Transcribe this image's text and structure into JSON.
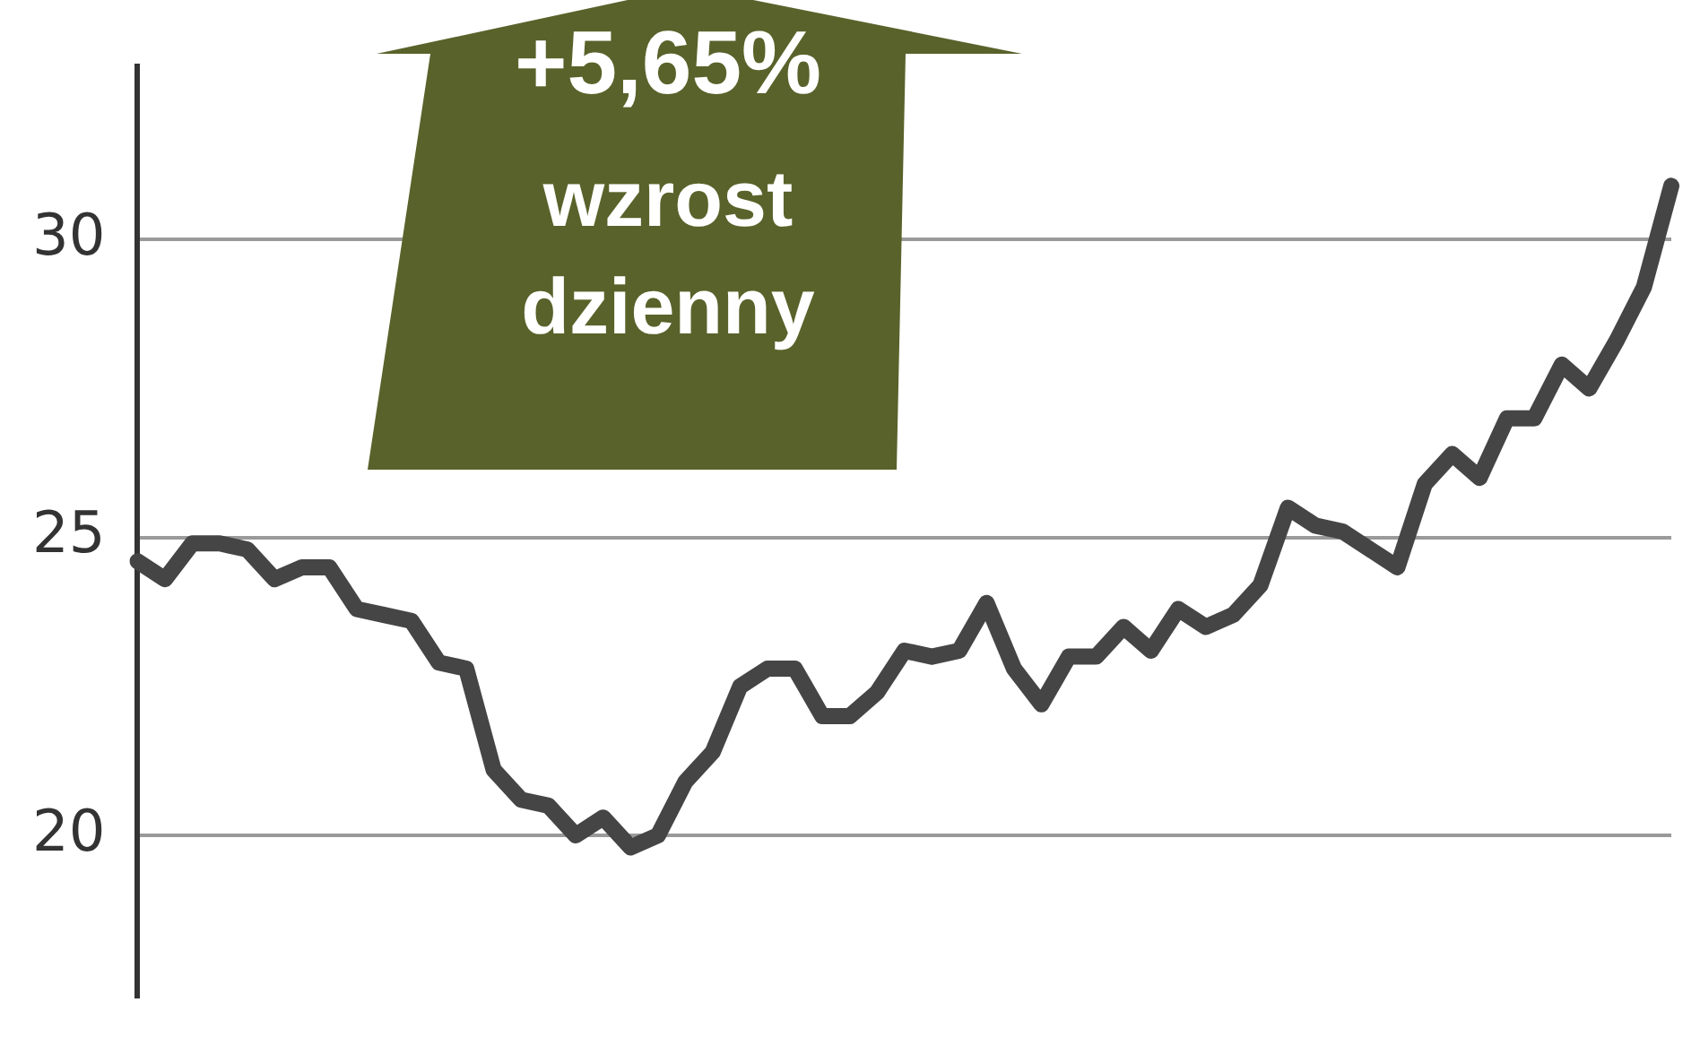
{
  "chart_data": {
    "type": "line",
    "categories": [
      null,
      null,
      null,
      null,
      null,
      null,
      null,
      null,
      null,
      null,
      null,
      null,
      null,
      null,
      null,
      null,
      null,
      null,
      null,
      null,
      null,
      null,
      null,
      null,
      null,
      null,
      null,
      null,
      null,
      null,
      null,
      null,
      null,
      null,
      null,
      null,
      null,
      null,
      null,
      null,
      null,
      null,
      null,
      null,
      null,
      null,
      null,
      null,
      null,
      null,
      null,
      null,
      null,
      null,
      null,
      null,
      null
    ],
    "series": [
      {
        "color": "#454545",
        "values": [
          24.6,
          24.3,
          24.9,
          24.9,
          24.8,
          24.3,
          24.5,
          24.5,
          23.8,
          23.7,
          23.6,
          22.9,
          22.8,
          21.1,
          20.6,
          20.5,
          20,
          20.3,
          19.8,
          20,
          20.9,
          21.4,
          22.5,
          22.8,
          22.8,
          22,
          22,
          22.4,
          23.1,
          23,
          23.1,
          23.9,
          22.8,
          22.2,
          23,
          23,
          23.5,
          23.1,
          23.8,
          23.5,
          23.7,
          24.2,
          25.5,
          25.2,
          25.1,
          24.8,
          24.5,
          25.9,
          26.4,
          26,
          27,
          27,
          27.9,
          27.5,
          28.3,
          29.2,
          30.9
        ]
      }
    ],
    "ylim": [
      17.3,
      32.9
    ],
    "yticks": [
      20,
      25,
      30
    ],
    "grid": "y",
    "line_style": "solid",
    "marker": "none",
    "annotations": [
      "+5,65%",
      "wzrost",
      "dzienny"
    ]
  }
}
